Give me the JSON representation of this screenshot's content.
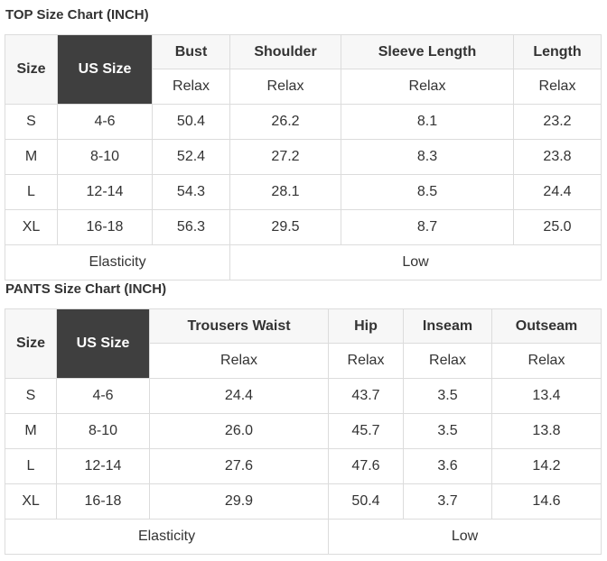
{
  "top": {
    "title": "TOP Size Chart (INCH)",
    "size_header": "Size",
    "us_header": "US Size",
    "columns": [
      "Bust",
      "Shoulder",
      "Sleeve Length",
      "Length"
    ],
    "sub_labels": [
      "Relax",
      "Relax",
      "Relax",
      "Relax"
    ],
    "rows": [
      {
        "size": "S",
        "us": "4-6",
        "values": [
          "50.4",
          "26.2",
          "8.1",
          "23.2"
        ]
      },
      {
        "size": "M",
        "us": "8-10",
        "values": [
          "52.4",
          "27.2",
          "8.3",
          "23.8"
        ]
      },
      {
        "size": "L",
        "us": "12-14",
        "values": [
          "54.3",
          "28.1",
          "8.5",
          "24.4"
        ]
      },
      {
        "size": "XL",
        "us": "16-18",
        "values": [
          "56.3",
          "29.5",
          "8.7",
          "25.0"
        ]
      }
    ],
    "elasticity_label": "Elasticity",
    "elasticity_value": "Low"
  },
  "pants": {
    "title": "PANTS Size Chart (INCH)",
    "size_header": "Size",
    "us_header": "US Size",
    "columns": [
      "Trousers Waist",
      "Hip",
      "Inseam",
      "Outseam"
    ],
    "sub_labels": [
      "Relax",
      "Relax",
      "Relax",
      "Relax"
    ],
    "rows": [
      {
        "size": "S",
        "us": "4-6",
        "values": [
          "24.4",
          "43.7",
          "3.5",
          "13.4"
        ]
      },
      {
        "size": "M",
        "us": "8-10",
        "values": [
          "26.0",
          "45.7",
          "3.5",
          "13.8"
        ]
      },
      {
        "size": "L",
        "us": "12-14",
        "values": [
          "27.6",
          "47.6",
          "3.6",
          "14.2"
        ]
      },
      {
        "size": "XL",
        "us": "16-18",
        "values": [
          "29.9",
          "50.4",
          "3.7",
          "14.6"
        ]
      }
    ],
    "elasticity_label": "Elasticity",
    "elasticity_value": "Low"
  }
}
